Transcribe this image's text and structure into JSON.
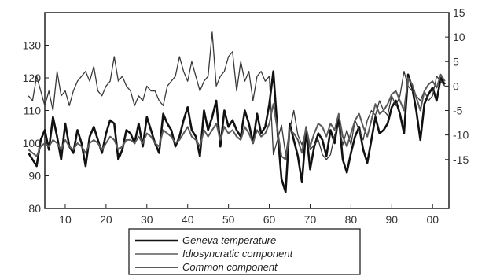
{
  "chart_data": {
    "type": "line",
    "title": "",
    "xlabel": "",
    "ylabel": "",
    "x": [
      1,
      2,
      3,
      4,
      5,
      6,
      7,
      8,
      9,
      10,
      11,
      12,
      13,
      14,
      15,
      16,
      17,
      18,
      19,
      20,
      21,
      22,
      23,
      24,
      25,
      26,
      27,
      28,
      29,
      30,
      31,
      32,
      33,
      34,
      35,
      36,
      37,
      38,
      39,
      40,
      41,
      42,
      43,
      44,
      45,
      46,
      47,
      48,
      49,
      50,
      51,
      52,
      53,
      54,
      55,
      56,
      57,
      58,
      59,
      60,
      61,
      62,
      63,
      64,
      65,
      66,
      67,
      68,
      69,
      70,
      71,
      72,
      73,
      74,
      75,
      76,
      77,
      78,
      79,
      80,
      81,
      82,
      83,
      84,
      85,
      86,
      87,
      88,
      89,
      90,
      91,
      92,
      93,
      94,
      95,
      96,
      97,
      98,
      99,
      100,
      101,
      102,
      103
    ],
    "x_ticks": [
      "10",
      "20",
      "30",
      "40",
      "50",
      "60",
      "70",
      "80",
      "90",
      "00"
    ],
    "x_tick_positions": [
      10,
      20,
      30,
      40,
      50,
      60,
      70,
      80,
      90,
      100
    ],
    "xlim": [
      5,
      104
    ],
    "left_axis": {
      "ylim": [
        80,
        140
      ],
      "ticks": [
        "80",
        "90",
        "100",
        "110",
        "120",
        "130"
      ],
      "tick_values": [
        80,
        90,
        100,
        110,
        120,
        130
      ]
    },
    "right_axis": {
      "ylim": [
        -25,
        15
      ],
      "ticks": [
        "-15",
        "-10",
        "-5",
        "0",
        "5",
        "10",
        "15"
      ],
      "tick_values": [
        -15,
        -10,
        -5,
        0,
        5,
        10,
        15
      ]
    },
    "grid": false,
    "legend_position": "bottom",
    "series": [
      {
        "name": "Geneva temperature",
        "axis": "left",
        "color": "#111111",
        "width": 2.6,
        "values": [
          97,
          95,
          93,
          101,
          104,
          98,
          108,
          102,
          95,
          106,
          99,
          97,
          104,
          100,
          93,
          102,
          105,
          101,
          97,
          103,
          107,
          106,
          95,
          98,
          104,
          103,
          100,
          106,
          99,
          108,
          104,
          100,
          97,
          109,
          106,
          104,
          99,
          102,
          107,
          111,
          104,
          102,
          96,
          110,
          104,
          108,
          113,
          99,
          110,
          105,
          107,
          104,
          102,
          110,
          106,
          100,
          109,
          103,
          105,
          112,
          122,
          104,
          89,
          85,
          106,
          101,
          96,
          88,
          104,
          92,
          99,
          103,
          101,
          96,
          104,
          100,
          108,
          95,
          91,
          97,
          102,
          105,
          98,
          94,
          101,
          108,
          103,
          104,
          106,
          111,
          113,
          109,
          103,
          121,
          117,
          110,
          101,
          112,
          115,
          117,
          113,
          120,
          118
        ]
      },
      {
        "name": "Idiosyncratic component",
        "axis": "right",
        "color": "#3a3a3a",
        "width": 1.3,
        "values": [
          -2,
          -3,
          2,
          -1,
          -4,
          -1,
          -5,
          3,
          -2,
          -1,
          -4,
          -1,
          1,
          2,
          3,
          1,
          4,
          -1,
          -2,
          0,
          1,
          6,
          1,
          2,
          0,
          -1,
          -4,
          -2,
          -3,
          0,
          -1,
          -1,
          -3,
          -4,
          0,
          1,
          2,
          6,
          3,
          1,
          5,
          2,
          -1,
          1,
          2,
          11,
          0,
          2,
          3,
          6,
          7,
          -1,
          5,
          1,
          3,
          -3,
          2,
          3,
          1,
          2,
          -14,
          -11,
          -8,
          -14,
          -9,
          -5,
          -10,
          -12,
          -9,
          -13,
          -12,
          -11,
          -14,
          -15,
          -14,
          -10,
          -8,
          -12,
          -9,
          -12,
          -7,
          -9,
          -11,
          -7,
          -5,
          -6,
          -3,
          -5,
          -6,
          -2,
          -4,
          -2,
          3,
          0,
          -1,
          -2,
          -3,
          -1,
          -3,
          -2,
          2,
          1,
          0
        ]
      },
      {
        "name": "Common component",
        "axis": "left",
        "color": "#5a5a5a",
        "width": 2.0,
        "values": [
          98,
          97,
          96,
          99,
          100,
          99,
          101,
          100,
          98,
          101,
          99,
          98,
          100,
          99,
          97,
          100,
          101,
          100,
          98,
          100,
          102,
          101,
          98,
          99,
          101,
          101,
          100,
          102,
          100,
          103,
          102,
          100,
          99,
          104,
          103,
          102,
          100,
          101,
          103,
          105,
          102,
          101,
          99,
          104,
          102,
          104,
          106,
          101,
          105,
          103,
          104,
          102,
          101,
          105,
          103,
          100,
          104,
          102,
          103,
          106,
          112,
          104,
          96,
          95,
          104,
          103,
          101,
          97,
          105,
          99,
          103,
          106,
          105,
          102,
          106,
          104,
          109,
          102,
          99,
          103,
          107,
          109,
          105,
          102,
          107,
          112,
          109,
          110,
          112,
          115,
          116,
          113,
          110,
          120,
          118,
          114,
          110,
          116,
          118,
          119,
          117,
          121,
          119
        ]
      }
    ]
  },
  "legend": {
    "items": [
      "Geneva temperature",
      "Idiosyncratic component",
      "Common component"
    ]
  }
}
